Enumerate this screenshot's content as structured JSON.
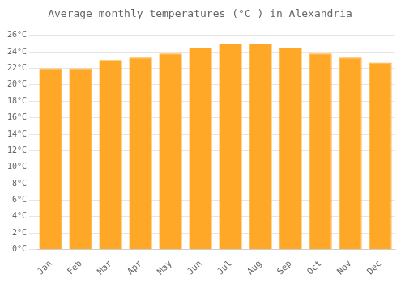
{
  "chart_data": {
    "type": "bar",
    "title": "Average monthly temperatures (°C ) in Alexandria",
    "categories": [
      "Jan",
      "Feb",
      "Mar",
      "Apr",
      "May",
      "Jun",
      "Jul",
      "Aug",
      "Sep",
      "Oct",
      "Nov",
      "Dec"
    ],
    "values": [
      22.0,
      22.0,
      23.0,
      23.3,
      23.8,
      24.5,
      25.0,
      25.0,
      24.5,
      23.8,
      23.3,
      22.7
    ],
    "color": "#FFA726",
    "ylim": [
      0,
      27
    ],
    "yticks": [
      {
        "value": 0,
        "label": "0°C"
      },
      {
        "value": 2,
        "label": "2°C"
      },
      {
        "value": 4,
        "label": "4°C"
      },
      {
        "value": 6,
        "label": "6°C"
      },
      {
        "value": 8,
        "label": "8°C"
      },
      {
        "value": 10,
        "label": "10°C"
      },
      {
        "value": 12,
        "label": "12°C"
      },
      {
        "value": 14,
        "label": "14°C"
      },
      {
        "value": 16,
        "label": "16°C"
      },
      {
        "value": 18,
        "label": "18°C"
      },
      {
        "value": 20,
        "label": "20°C"
      },
      {
        "value": 22,
        "label": "22°C"
      },
      {
        "value": 24,
        "label": "24°C"
      },
      {
        "value": 26,
        "label": "26°C"
      }
    ],
    "grid": true
  }
}
